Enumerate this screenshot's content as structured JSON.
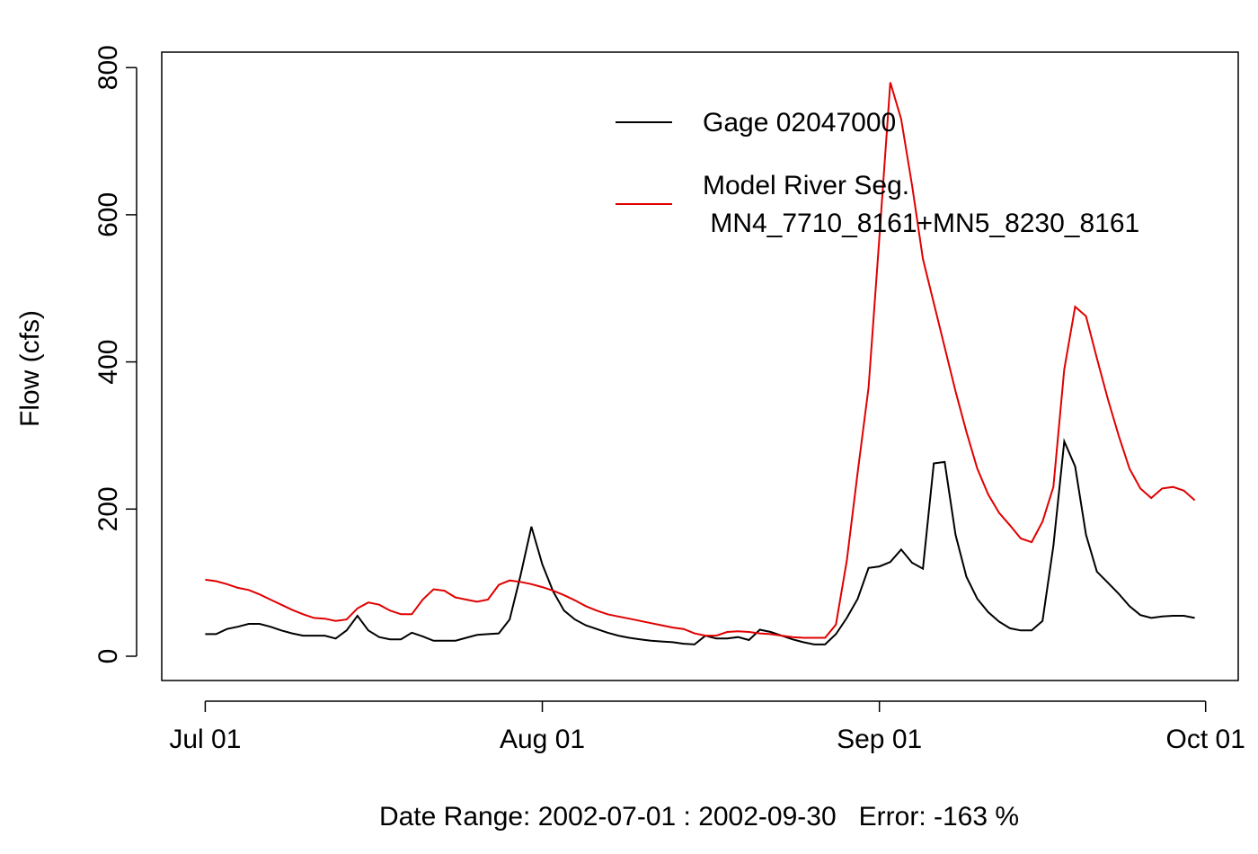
{
  "chart_data": {
    "type": "line",
    "xlabel": "Date Range: 2002-07-01 : 2002-09-30   Error: -163 %",
    "ylabel": "Flow (cfs)",
    "x": [
      "Jul 01",
      "Jul 02",
      "Jul 03",
      "Jul 04",
      "Jul 05",
      "Jul 06",
      "Jul 07",
      "Jul 08",
      "Jul 09",
      "Jul 10",
      "Jul 11",
      "Jul 12",
      "Jul 13",
      "Jul 14",
      "Jul 15",
      "Jul 16",
      "Jul 17",
      "Jul 18",
      "Jul 19",
      "Jul 20",
      "Jul 21",
      "Jul 22",
      "Jul 23",
      "Jul 24",
      "Jul 25",
      "Jul 26",
      "Jul 27",
      "Jul 28",
      "Jul 29",
      "Jul 30",
      "Jul 31",
      "Aug 01",
      "Aug 02",
      "Aug 03",
      "Aug 04",
      "Aug 05",
      "Aug 06",
      "Aug 07",
      "Aug 08",
      "Aug 09",
      "Aug 10",
      "Aug 11",
      "Aug 12",
      "Aug 13",
      "Aug 14",
      "Aug 15",
      "Aug 16",
      "Aug 17",
      "Aug 18",
      "Aug 19",
      "Aug 20",
      "Aug 21",
      "Aug 22",
      "Aug 23",
      "Aug 24",
      "Aug 25",
      "Aug 26",
      "Aug 27",
      "Aug 28",
      "Aug 29",
      "Aug 30",
      "Aug 31",
      "Sep 01",
      "Sep 02",
      "Sep 03",
      "Sep 04",
      "Sep 05",
      "Sep 06",
      "Sep 07",
      "Sep 08",
      "Sep 09",
      "Sep 10",
      "Sep 11",
      "Sep 12",
      "Sep 13",
      "Sep 14",
      "Sep 15",
      "Sep 16",
      "Sep 17",
      "Sep 18",
      "Sep 19",
      "Sep 20",
      "Sep 21",
      "Sep 22",
      "Sep 23",
      "Sep 24",
      "Sep 25",
      "Sep 26",
      "Sep 27",
      "Sep 28",
      "Sep 29",
      "Sep 30"
    ],
    "series": [
      {
        "name": "Gage 02047000",
        "color": "#000000",
        "values": [
          30,
          30,
          37,
          40,
          44,
          44,
          40,
          35,
          31,
          28,
          28,
          28,
          24,
          35,
          55,
          35,
          26,
          23,
          23,
          32,
          27,
          21,
          21,
          21,
          25,
          29,
          30,
          31,
          50,
          110,
          176,
          125,
          88,
          62,
          50,
          42,
          37,
          32,
          28,
          25,
          23,
          21,
          20,
          19,
          17,
          16,
          28,
          24,
          24,
          26,
          22,
          36,
          33,
          28,
          23,
          19,
          16,
          16,
          30,
          52,
          78,
          120,
          122,
          128,
          145,
          127,
          119,
          262,
          264,
          165,
          108,
          78,
          60,
          47,
          38,
          35,
          35,
          48,
          150,
          292,
          258,
          165,
          115,
          100,
          85,
          68,
          56,
          52,
          54,
          55,
          55,
          52
        ]
      },
      {
        "name": "Model River Seg.\n MN4_7710_8161+MN5_8230_8161",
        "color": "#e00000",
        "values": [
          104,
          102,
          98,
          93,
          90,
          84,
          77,
          70,
          63,
          57,
          52,
          51,
          48,
          50,
          65,
          73,
          70,
          62,
          57,
          57,
          77,
          91,
          89,
          80,
          77,
          74,
          77,
          97,
          103,
          101,
          98,
          94,
          89,
          83,
          76,
          68,
          62,
          57,
          54,
          51,
          48,
          45,
          42,
          39,
          37,
          31,
          28,
          28,
          33,
          34,
          33,
          31,
          30,
          28,
          26,
          25,
          25,
          25,
          43,
          130,
          250,
          365,
          570,
          780,
          730,
          640,
          540,
          480,
          420,
          360,
          305,
          255,
          220,
          195,
          178,
          160,
          155,
          183,
          230,
          390,
          475,
          462,
          405,
          350,
          300,
          255,
          228,
          215,
          228,
          230,
          225,
          212
        ]
      }
    ],
    "xlim": [
      "Jun 27",
      "Oct 04"
    ],
    "xticks": [
      "Jul 01",
      "Aug 01",
      "Sep 01",
      "Oct 01"
    ],
    "ylim": [
      -33,
      821
    ],
    "yticks": [
      0,
      200,
      400,
      600,
      800
    ],
    "legend": "top-right"
  }
}
